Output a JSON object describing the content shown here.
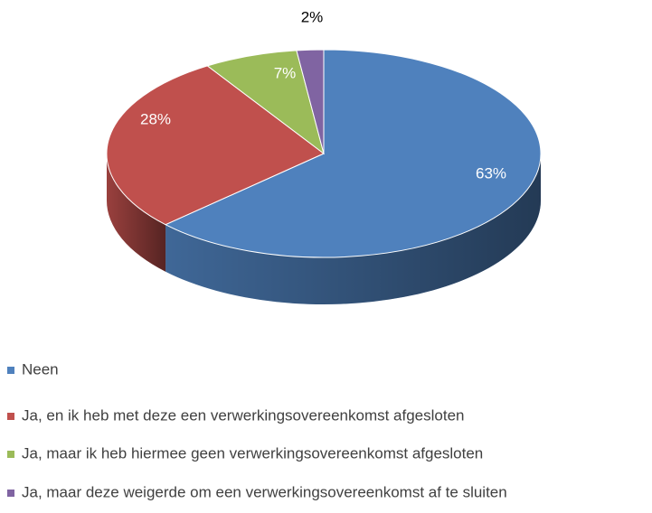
{
  "chart_data": {
    "type": "pie",
    "categories": [
      "Neen",
      "Ja, en ik heb met deze een verwerkingsovereenkomst afgesloten",
      "Ja, maar ik heb hiermee geen verwerkingsovereenkomst afgesloten",
      "Ja, maar deze weigerde om een verwerkingsovereenkomst af te sluiten"
    ],
    "values": [
      63,
      28,
      7,
      2
    ],
    "value_labels": [
      "63%",
      "28%",
      "7%",
      "2%"
    ],
    "colors": [
      "#4f81bd",
      "#c0504d",
      "#9bbb59",
      "#8064a2"
    ],
    "legend": "bottom"
  }
}
